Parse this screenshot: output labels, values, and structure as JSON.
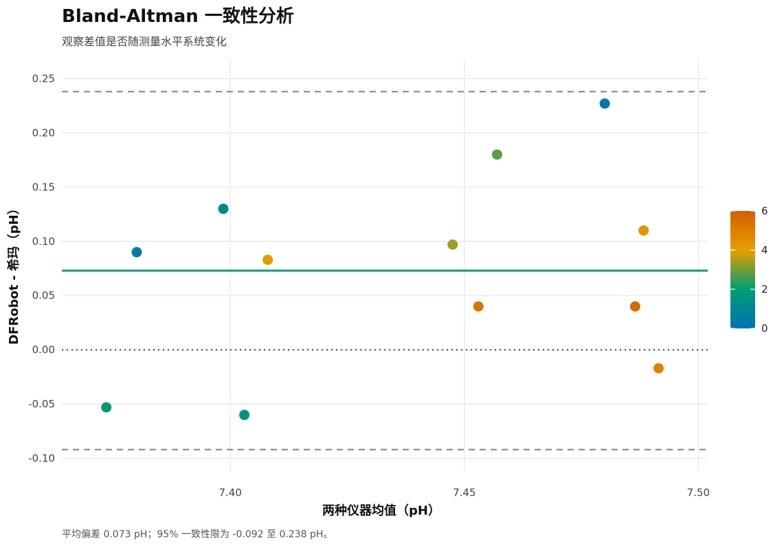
{
  "chart_data": {
    "type": "scatter",
    "title": "Bland-Altman 一致性分析",
    "subtitle": "观察差值是否随测量水平系统变化",
    "xlabel": "两种仪器均值（pH）",
    "ylabel": "DFRobot - 希玛（pH）",
    "caption": "平均偏差 0.073 pH；95% 一致性限为 -0.092 至 0.238 pH。",
    "xlim": [
      7.364,
      7.502
    ],
    "ylim": [
      -0.112,
      0.268
    ],
    "x_ticks": [
      {
        "value": 7.4,
        "label": "7.40"
      },
      {
        "value": 7.45,
        "label": "7.45"
      },
      {
        "value": 7.5,
        "label": "7.50"
      }
    ],
    "y_ticks": [
      {
        "value": 0.25,
        "label": "0.25"
      },
      {
        "value": 0.2,
        "label": "0.20"
      },
      {
        "value": 0.15,
        "label": "0.15"
      },
      {
        "value": 0.1,
        "label": "0.10"
      },
      {
        "value": 0.05,
        "label": "0.05"
      },
      {
        "value": 0.0,
        "label": "0.00"
      },
      {
        "value": -0.05,
        "label": "-0.05"
      },
      {
        "value": -0.1,
        "label": "-0.10"
      }
    ],
    "grid": true,
    "mean_bias": 0.073,
    "lower_loa": -0.092,
    "upper_loa": 0.238,
    "zero_line": 0.0,
    "points": [
      {
        "x": 7.3735,
        "y": -0.053,
        "c": 1.8
      },
      {
        "x": 7.38,
        "y": 0.09,
        "c": 0.6
      },
      {
        "x": 7.3985,
        "y": 0.13,
        "c": 1.0
      },
      {
        "x": 7.403,
        "y": -0.06,
        "c": 1.6
      },
      {
        "x": 7.408,
        "y": 0.083,
        "c": 4.2
      },
      {
        "x": 7.4475,
        "y": 0.097,
        "c": 3.4
      },
      {
        "x": 7.453,
        "y": 0.04,
        "c": 5.3
      },
      {
        "x": 7.457,
        "y": 0.18,
        "c": 2.8
      },
      {
        "x": 7.48,
        "y": 0.227,
        "c": 0.3
      },
      {
        "x": 7.4865,
        "y": 0.04,
        "c": 5.7
      },
      {
        "x": 7.4883,
        "y": 0.11,
        "c": 4.3
      },
      {
        "x": 7.4915,
        "y": -0.017,
        "c": 4.9
      }
    ],
    "colorbar": {
      "range": [
        0,
        6
      ],
      "ticks": [
        {
          "value": 6,
          "label": "6"
        },
        {
          "value": 4,
          "label": "4"
        },
        {
          "value": 2,
          "label": "2"
        },
        {
          "value": 0,
          "label": "0"
        }
      ],
      "stops": [
        "#0072B2",
        "#009E73",
        "#E69F00",
        "#D55E00"
      ],
      "placement": "right"
    },
    "colors": {
      "mean_line": "#13997a",
      "loa_line": "#808080",
      "zero_line": "#444444",
      "grid": "#e6e6e6"
    }
  }
}
